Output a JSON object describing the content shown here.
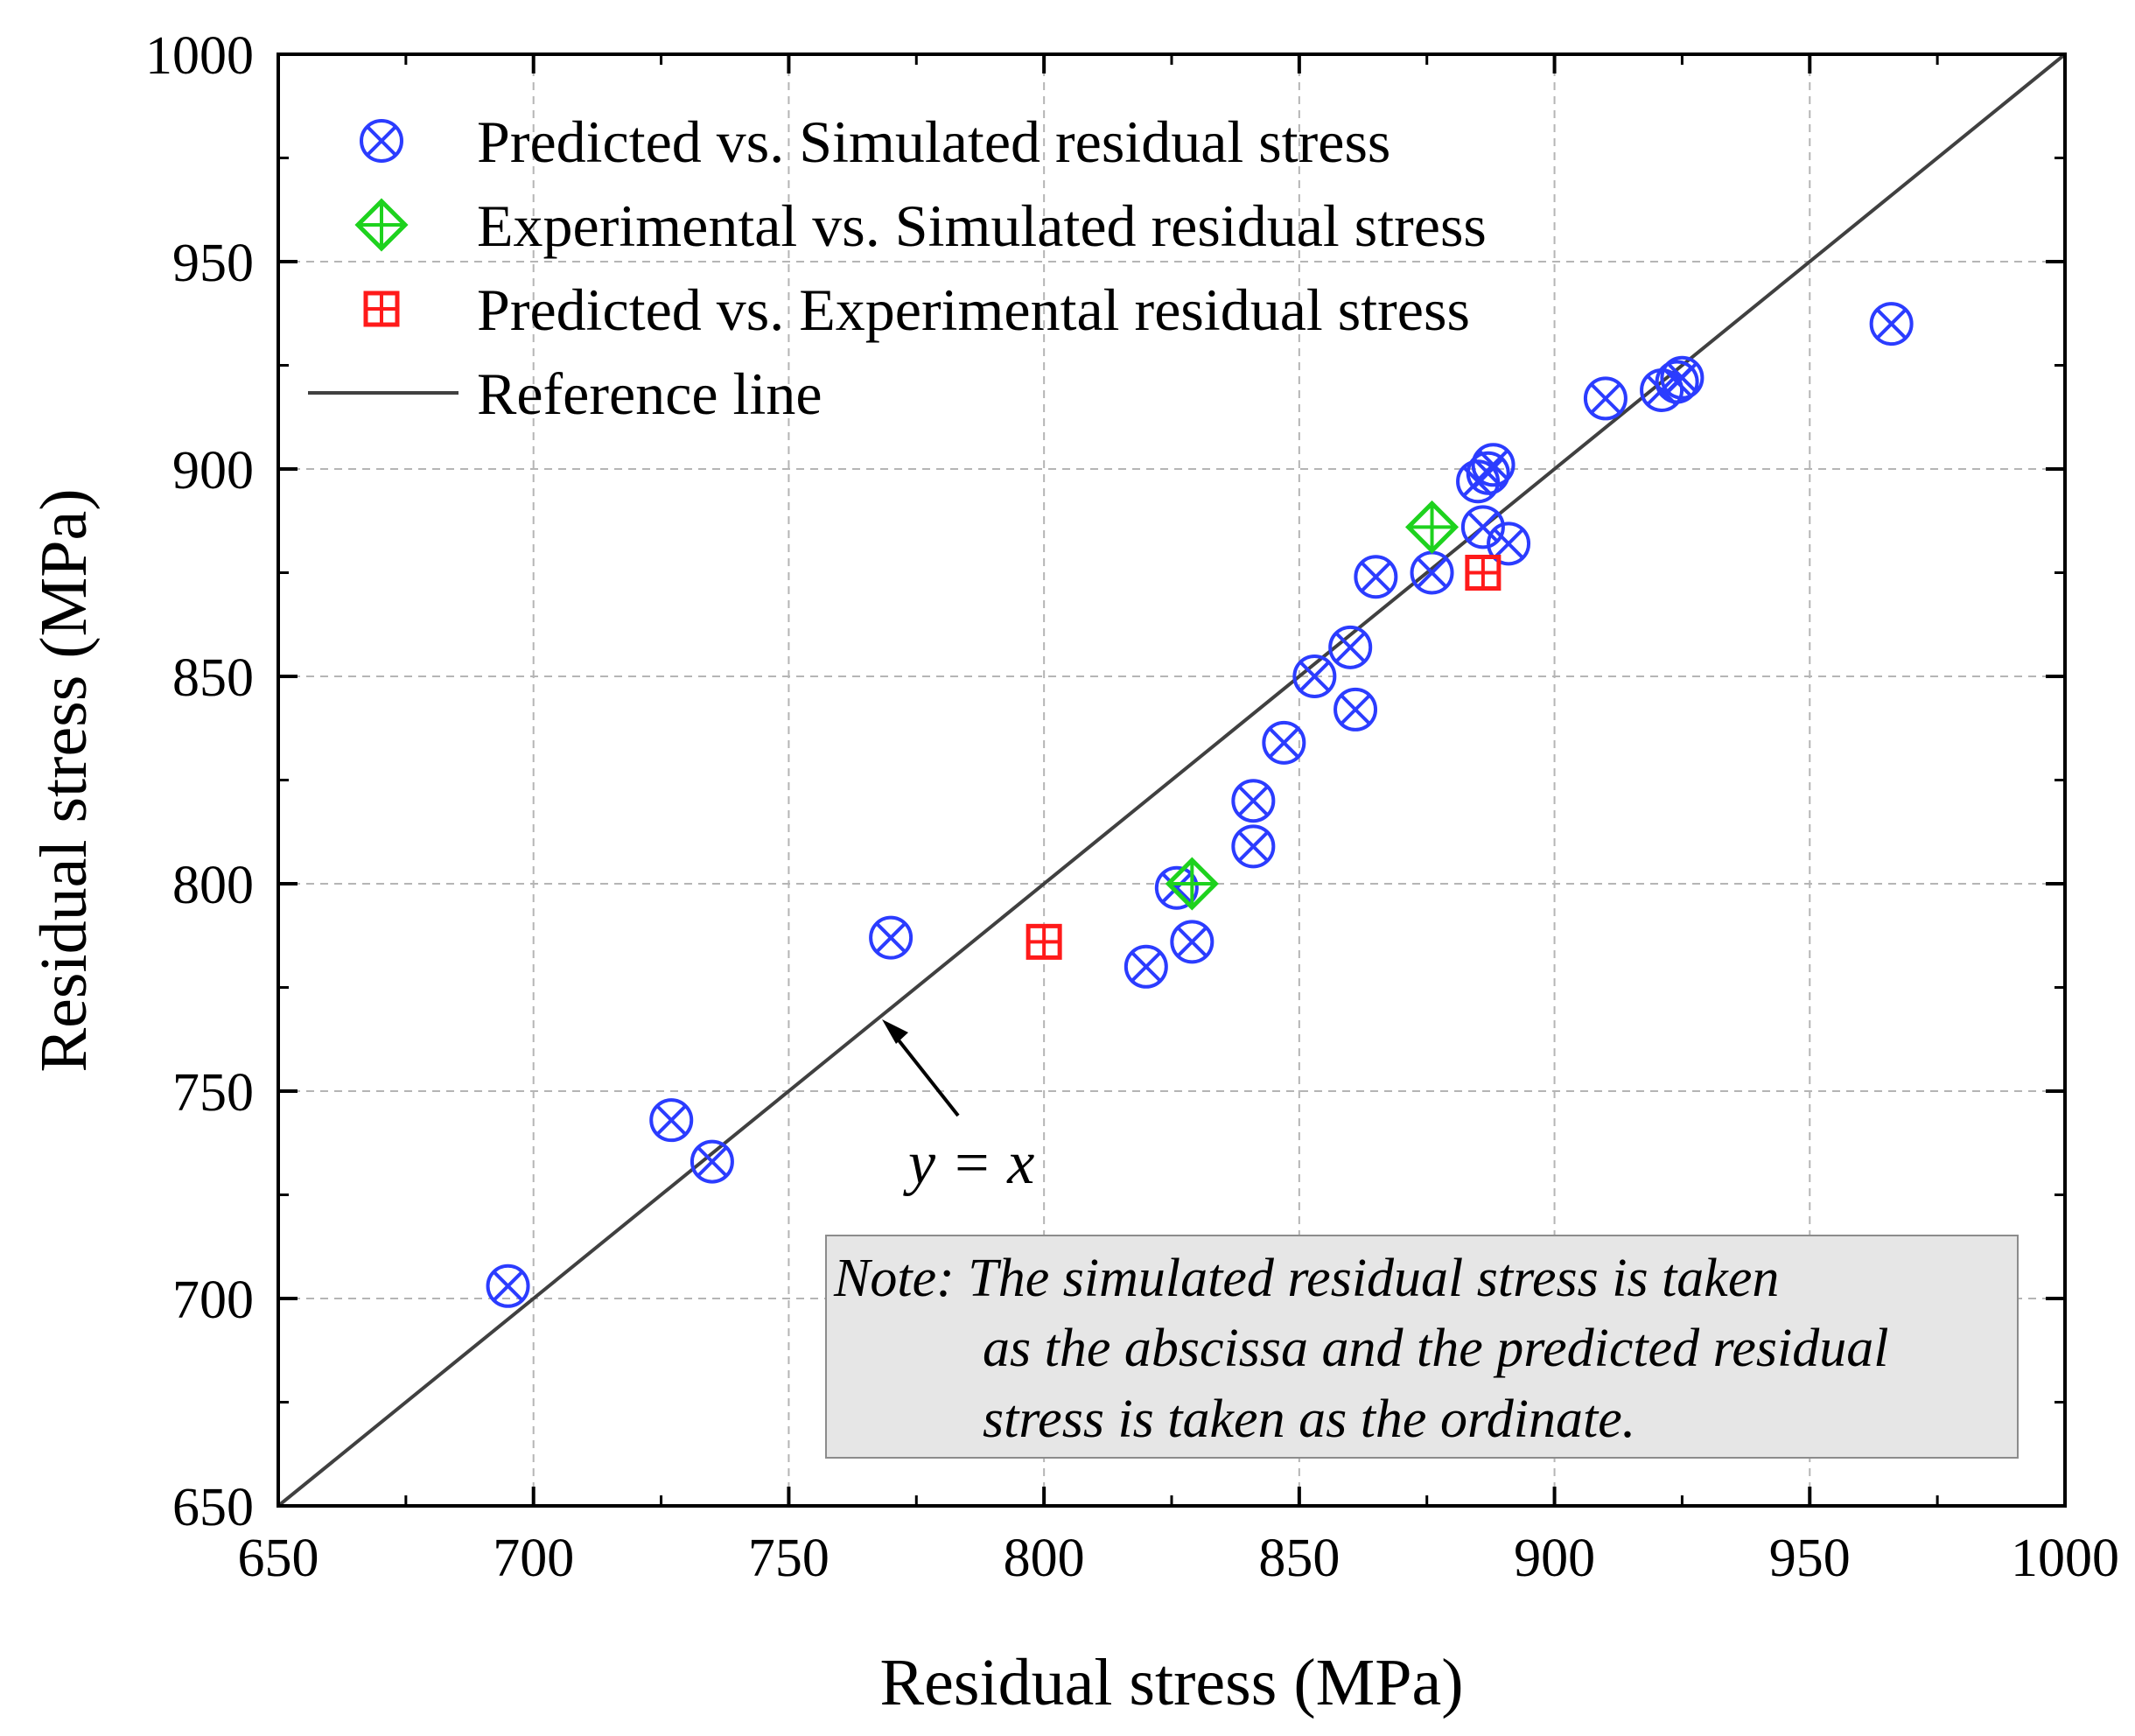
{
  "chart_data": {
    "type": "scatter",
    "title": "",
    "xlabel": "Residual stress (MPa)",
    "ylabel": "Residual stress (MPa)",
    "xlim": [
      650,
      1000
    ],
    "ylim": [
      650,
      1000
    ],
    "x_ticks": [
      650,
      700,
      750,
      800,
      850,
      900,
      950,
      1000
    ],
    "y_ticks": [
      650,
      700,
      750,
      800,
      850,
      900,
      950,
      1000
    ],
    "grid": true,
    "legend_position": "top-left",
    "series": [
      {
        "name": "Predicted vs. Simulated residual stress",
        "marker": "circle-x",
        "color": "#2b3cff",
        "points": [
          [
            695,
            703
          ],
          [
            727,
            743
          ],
          [
            735,
            733
          ],
          [
            770,
            787
          ],
          [
            820,
            780
          ],
          [
            826,
            799
          ],
          [
            829,
            786
          ],
          [
            841,
            820
          ],
          [
            841,
            809
          ],
          [
            847,
            834
          ],
          [
            853,
            850
          ],
          [
            860,
            857
          ],
          [
            861,
            842
          ],
          [
            865,
            874
          ],
          [
            876,
            875
          ],
          [
            885,
            897
          ],
          [
            886,
            886
          ],
          [
            887,
            899
          ],
          [
            888,
            901
          ],
          [
            891,
            882
          ],
          [
            910,
            917
          ],
          [
            921,
            919
          ],
          [
            924,
            921
          ],
          [
            925,
            922
          ],
          [
            966,
            935
          ]
        ]
      },
      {
        "name": "Experimental vs. Simulated residual stress",
        "marker": "diamond-plus",
        "color": "#1ed21e",
        "points": [
          [
            829,
            800
          ],
          [
            876,
            886
          ]
        ]
      },
      {
        "name": "Predicted vs. Experimental residual stress",
        "marker": "square-plus",
        "color": "#ff1a1a",
        "points": [
          [
            800,
            786
          ],
          [
            886,
            875
          ]
        ]
      },
      {
        "name": "Reference line",
        "marker": "line",
        "color": "#404040",
        "points": [
          [
            650,
            650
          ],
          [
            1000,
            1000
          ]
        ]
      }
    ],
    "annotations": {
      "reference_label": "y = x",
      "note_lines": [
        "Note: The simulated residual stress is taken",
        "as the abscissa and the predicted residual",
        "stress is taken as the ordinate."
      ]
    }
  }
}
